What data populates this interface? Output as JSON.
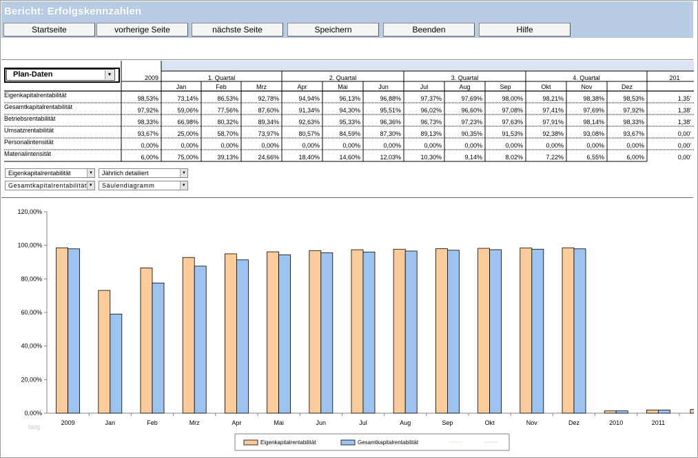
{
  "window": {
    "title": "Bericht: Erfolgskennzahlen"
  },
  "nav": [
    {
      "label": "Startseite"
    },
    {
      "label": "vorherige Seite"
    },
    {
      "label": "nächste Seite"
    },
    {
      "label": "Speichern"
    },
    {
      "label": "Beenden"
    },
    {
      "label": "Hilfe"
    }
  ],
  "plan_select": {
    "value": "Plan-Daten"
  },
  "table": {
    "year": "2009",
    "next_year": "201",
    "quarters": [
      "1. Quartal",
      "2. Quartal",
      "3. Quartal",
      "4. Quartal"
    ],
    "months": [
      "Jan",
      "Feb",
      "Mrz",
      "Apr",
      "Mai",
      "Jun",
      "Jul",
      "Aug",
      "Sep",
      "Okt",
      "Nov",
      "Dez"
    ],
    "rows": [
      {
        "label": "Eigenkapitalrentabilität",
        "values": [
          "98,53%",
          "73,14%",
          "86,53%",
          "92,78%",
          "94,94%",
          "96,13%",
          "96,88%",
          "97,37%",
          "97,69%",
          "98,00%",
          "98,21%",
          "98,38%",
          "98,53%",
          "1,35'"
        ]
      },
      {
        "label": "Gesamtkapitalrentabilität",
        "values": [
          "97,92%",
          "59,06%",
          "77,56%",
          "87,60%",
          "91,34%",
          "94,30%",
          "95,51%",
          "96,02%",
          "96,60%",
          "97,08%",
          "97,41%",
          "97,69%",
          "97,92%",
          "1,38'"
        ]
      },
      {
        "label": "Betriebsrentabilität",
        "values": [
          "98,33%",
          "66,98%",
          "80,32%",
          "89,34%",
          "92,63%",
          "95,33%",
          "96,36%",
          "96,73%",
          "97,23%",
          "97,63%",
          "97,91%",
          "98,14%",
          "98,33%",
          "1,38'"
        ]
      },
      {
        "label": "Umsatzrentabilität",
        "values": [
          "93,67%",
          "25,00%",
          "58,70%",
          "73,97%",
          "80,57%",
          "84,59%",
          "87,30%",
          "89,13%",
          "90,35%",
          "91,53%",
          "92,38%",
          "93,08%",
          "93,67%",
          "0,00'"
        ]
      },
      {
        "label": "Personalintensität",
        "values": [
          "0,00%",
          "0,00%",
          "0,00%",
          "0,00%",
          "0,00%",
          "0,00%",
          "0,00%",
          "0,00%",
          "0,00%",
          "0,00%",
          "0,00%",
          "0,00%",
          "0,00%",
          "0,00'"
        ]
      },
      {
        "label": "Materialintensität",
        "values": [
          "6,00%",
          "75,00%",
          "39,13%",
          "24,66%",
          "18,40%",
          "14,60%",
          "12,03%",
          "10,30%",
          "9,14%",
          "8,02%",
          "7,22%",
          "6,55%",
          "6,00%",
          "0,00'"
        ]
      }
    ]
  },
  "selectors": {
    "metric1": "Eigenkapitalrentabilität",
    "metric2": "Gesamtkapitalrentabilität",
    "period": "Jährlich detailiert",
    "chart_type": "Säulendiagramm"
  },
  "watermark": "blog",
  "colors": {
    "header": "#b8cce4",
    "series1": "#fbcc99",
    "series2": "#9dc3f0"
  },
  "chart_data": {
    "type": "bar",
    "categories": [
      "2009",
      "Jan",
      "Feb",
      "Mrz",
      "Apr",
      "Mai",
      "Jun",
      "Jul",
      "Aug",
      "Sep",
      "Okt",
      "Nov",
      "Dez",
      "2010",
      "2011"
    ],
    "series": [
      {
        "name": "Eigenkapitalrentabilität",
        "values": [
          98.53,
          73.14,
          86.53,
          92.78,
          94.94,
          96.13,
          96.88,
          97.37,
          97.69,
          98.0,
          98.21,
          98.38,
          98.53,
          1.35,
          1.9
        ]
      },
      {
        "name": "Gesamtkapitalrentabilität",
        "values": [
          97.92,
          59.06,
          77.56,
          87.6,
          91.34,
          94.3,
          95.51,
          96.02,
          96.6,
          97.08,
          97.41,
          97.69,
          97.92,
          1.38,
          1.9
        ]
      }
    ],
    "yticks": [
      "0,00%",
      "20,00%",
      "40,00%",
      "60,00%",
      "80,00%",
      "100,00%",
      "120,00%"
    ],
    "ylim": [
      0,
      120
    ],
    "legend": "bottom",
    "grid": false
  }
}
